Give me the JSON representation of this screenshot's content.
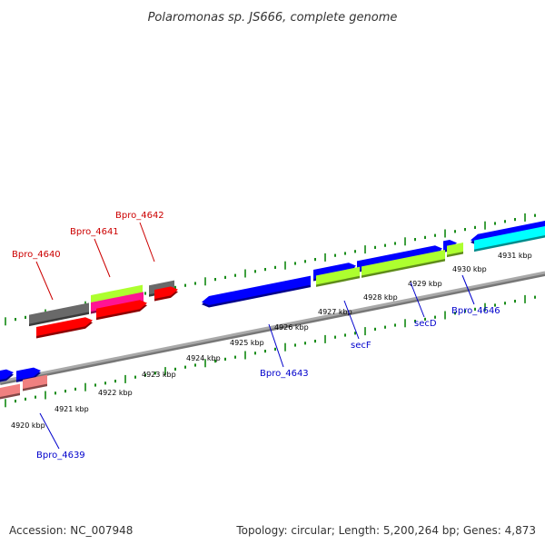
{
  "title": "Polaromonas sp. JS666, complete genome",
  "footer": {
    "accession": "Accession: NC_007948",
    "summary": "Topology: circular; Length: 5,200,264 bp; Genes: 4,873"
  },
  "colors": {
    "backbone": "#999999",
    "tick": "#008000",
    "strand_label": "#00008b",
    "gene_blue": "#0000ff",
    "gene_red": "#ff0000",
    "gene_green": "#adff2f",
    "gene_cyan": "#00ffff",
    "gene_magenta": "#ff1493",
    "gene_gray": "#696969",
    "gene_pink": "#f08080",
    "label_red": "#cc0000",
    "label_blue": "#0000cc"
  },
  "kbp_labels": [
    "4920 kbp",
    "4921 kbp",
    "4922 kbp",
    "4923 kbp",
    "4924 kbp",
    "4925 kbp",
    "4926 kbp",
    "4927 kbp",
    "4928 kbp",
    "4929 kbp",
    "4930 kbp",
    "4931 kbp"
  ],
  "gene_labels": [
    {
      "text": "Bpro_4640",
      "strand": "top",
      "color": "label_red"
    },
    {
      "text": "Bpro_4641",
      "strand": "top",
      "color": "label_red"
    },
    {
      "text": "Bpro_4642",
      "strand": "top",
      "color": "label_red"
    },
    {
      "text": "Bpro_4639",
      "strand": "bottom",
      "color": "label_blue"
    },
    {
      "text": "Bpro_4643",
      "strand": "bottom",
      "color": "label_blue"
    },
    {
      "text": "secF",
      "strand": "bottom",
      "color": "label_blue"
    },
    {
      "text": "secD",
      "strand": "bottom",
      "color": "label_blue"
    },
    {
      "text": "Bpro_4646",
      "strand": "bottom",
      "color": "label_blue"
    }
  ]
}
